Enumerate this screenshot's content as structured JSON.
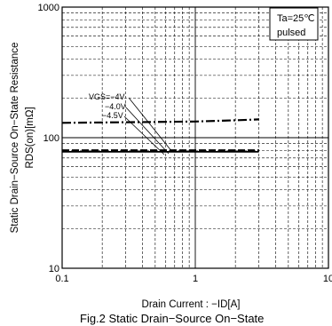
{
  "chart_data": {
    "type": "line",
    "x_scale": "log",
    "y_scale": "log",
    "xlim": [
      0.1,
      10
    ],
    "ylim": [
      10,
      1000
    ],
    "x_ticks": [
      "0.1",
      "1",
      "10"
    ],
    "y_ticks": [
      "10",
      "100",
      "1000"
    ],
    "xlabel": "Drain Current : −ID[A]",
    "ylabel_line1": "Static Drain−Source  On−State  Resistance",
    "ylabel_line2": "RDS(on)[mΩ]",
    "grid": true,
    "conditions": [
      "Ta=25℃",
      "pulsed"
    ],
    "annotations": [
      "VGS=−4V",
      "−4.0V",
      "−4.5V"
    ],
    "caption": "Fig.2  Static Drain−Source  On−State",
    "series": [
      {
        "name": "VGS=−4V",
        "style": "dashdot",
        "x": [
          0.1,
          0.5,
          1,
          2,
          3
        ],
        "y": [
          130,
          132,
          133,
          136,
          138
        ]
      },
      {
        "name": "−4.0V",
        "style": "dashed",
        "x": [
          0.1,
          0.5,
          1,
          2,
          3
        ],
        "y": [
          80,
          80,
          80,
          80,
          80
        ]
      },
      {
        "name": "−4.5V",
        "style": "solid",
        "x": [
          0.1,
          0.5,
          1,
          2,
          3
        ],
        "y": [
          78,
          78,
          78,
          78,
          78
        ]
      }
    ]
  }
}
